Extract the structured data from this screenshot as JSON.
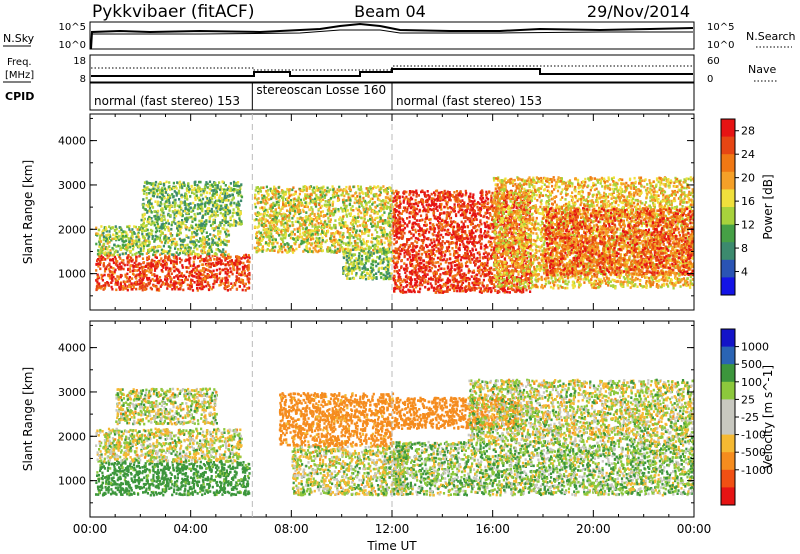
{
  "header": {
    "station": "Pykkvibaer (fitACF)",
    "beam": "Beam 04",
    "date": "29/Nov/2014"
  },
  "strip": {
    "nsky_label": "N.Sky",
    "nsearch_label": "N.Search",
    "freq_label_line1": "Freq.",
    "freq_label_line2": "[MHz]",
    "nave_label": "Nave",
    "cpid_label": "CPID",
    "left_ticks_top": [
      "10^5",
      "10^0"
    ],
    "right_ticks_top": [
      "10^5",
      "10^0"
    ],
    "left_ticks_freq": [
      "18",
      "8"
    ],
    "right_ticks_nave": [
      "60",
      "0"
    ]
  },
  "modes": [
    {
      "label": "normal (fast stereo) 153",
      "start_h": 0.0,
      "end_h": 6.45
    },
    {
      "label": "stereoscan Losse 160",
      "start_h": 6.45,
      "end_h": 12.0
    },
    {
      "label": "normal (fast stereo) 153",
      "start_h": 12.0,
      "end_h": 24.0
    }
  ],
  "colors": {
    "power": [
      "#1414e6",
      "#2a54b4",
      "#3c8a6e",
      "#46a046",
      "#a8d23c",
      "#f0e03c",
      "#f5a028",
      "#f07814",
      "#e64614",
      "#e61414"
    ],
    "velocity": [
      "#e61414",
      "#f05014",
      "#f58c1e",
      "#f5b932",
      "#c8c8c0",
      "#c8c8c0",
      "#8cc83c",
      "#3c963c",
      "#2a64b4",
      "#1414c8"
    ]
  },
  "chart_data": [
    {
      "type": "heatmap",
      "title": "Pykkvibaer (fitACF)",
      "xlabel": "Time UT",
      "ylabel": "Slant Range [km]",
      "colorbar_label": "Power [dB]",
      "xlim": [
        0,
        24
      ],
      "ylim": [
        180,
        4600
      ],
      "x_ticks": [
        "00:00",
        "04:00",
        "08:00",
        "12:00",
        "16:00",
        "20:00",
        "00:00"
      ],
      "y_ticks": [
        1000,
        2000,
        3000,
        4000
      ],
      "colorbar_ticks": [
        4,
        8,
        12,
        16,
        20,
        24,
        28
      ],
      "colorbar_range": [
        0,
        30
      ],
      "regions": [
        {
          "t": [
            0.2,
            6.3
          ],
          "r": [
            650,
            1450
          ],
          "value": 26
        },
        {
          "t": [
            0.2,
            5.5
          ],
          "r": [
            1450,
            2100
          ],
          "value": 13
        },
        {
          "t": [
            2.0,
            6.0
          ],
          "r": [
            2100,
            3100
          ],
          "value": 12
        },
        {
          "t": [
            6.5,
            12.0
          ],
          "r": [
            1500,
            3000
          ],
          "value": 16
        },
        {
          "t": [
            10.0,
            12.0
          ],
          "r": [
            900,
            1600
          ],
          "value": 12
        },
        {
          "t": [
            12.0,
            17.5
          ],
          "r": [
            600,
            2900
          ],
          "value": 27
        },
        {
          "t": [
            16.0,
            24.0
          ],
          "r": [
            700,
            3200
          ],
          "value": 18
        },
        {
          "t": [
            18.0,
            24.0
          ],
          "r": [
            1000,
            2500
          ],
          "value": 24
        }
      ]
    },
    {
      "type": "heatmap",
      "xlabel": "Time UT",
      "ylabel": "Slant Range [km]",
      "colorbar_label": "Velocity [m s^-1]",
      "xlim": [
        0,
        24
      ],
      "ylim": [
        180,
        4600
      ],
      "x_ticks": [
        "00:00",
        "04:00",
        "08:00",
        "12:00",
        "16:00",
        "20:00",
        "00:00"
      ],
      "y_ticks": [
        1000,
        2000,
        3000,
        4000
      ],
      "colorbar_ticks": [
        "1000",
        "500",
        "100",
        "25",
        "-25",
        "-100",
        "-500",
        "-1000"
      ],
      "regions": [
        {
          "t": [
            0.2,
            6.3
          ],
          "r": [
            700,
            1450
          ],
          "value": 200
        },
        {
          "t": [
            0.2,
            6.0
          ],
          "r": [
            1450,
            2200
          ],
          "value": 10
        },
        {
          "t": [
            1.0,
            5.0
          ],
          "r": [
            2300,
            3100
          ],
          "value": 10
        },
        {
          "t": [
            7.5,
            12.0
          ],
          "r": [
            1800,
            3000
          ],
          "value": -200
        },
        {
          "t": [
            8.0,
            12.5
          ],
          "r": [
            700,
            1800
          ],
          "value": 10
        },
        {
          "t": [
            12.0,
            17.0
          ],
          "r": [
            2200,
            2900
          ],
          "value": -300
        },
        {
          "t": [
            12.0,
            24.0
          ],
          "r": [
            700,
            1900
          ],
          "value": 60
        },
        {
          "t": [
            15.0,
            24.0
          ],
          "r": [
            1900,
            3300
          ],
          "value": 10
        }
      ]
    }
  ]
}
